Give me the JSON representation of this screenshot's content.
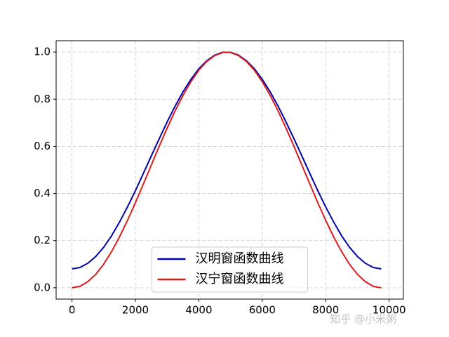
{
  "chart_data": {
    "type": "line",
    "x": [
      0,
      250,
      500,
      750,
      1000,
      1250,
      1500,
      1750,
      2000,
      2250,
      2500,
      2750,
      3000,
      3250,
      3500,
      3750,
      4000,
      4250,
      4500,
      4750,
      5000,
      5250,
      5500,
      5750,
      6000,
      6250,
      6500,
      6750,
      7000,
      7250,
      7500,
      7750,
      8000,
      8250,
      8500,
      8750,
      9000,
      9250,
      9500,
      9750
    ],
    "series": [
      {
        "name": "汉明窗函数曲线",
        "color": "#0000aa",
        "values": [
          0.08,
          0.086,
          0.104,
          0.133,
          0.172,
          0.221,
          0.279,
          0.343,
          0.412,
          0.485,
          0.559,
          0.632,
          0.703,
          0.77,
          0.831,
          0.884,
          0.929,
          0.963,
          0.987,
          0.999,
          0.999,
          0.987,
          0.963,
          0.929,
          0.884,
          0.831,
          0.77,
          0.703,
          0.632,
          0.559,
          0.485,
          0.412,
          0.343,
          0.279,
          0.221,
          0.172,
          0.133,
          0.104,
          0.086,
          0.08
        ]
      },
      {
        "name": "汉宁窗函数曲线",
        "color": "#dd1c1c",
        "values": [
          0,
          0.006,
          0.026,
          0.057,
          0.1,
          0.154,
          0.216,
          0.286,
          0.361,
          0.44,
          0.52,
          0.6,
          0.677,
          0.75,
          0.816,
          0.874,
          0.923,
          0.96,
          0.985,
          0.998,
          0.998,
          0.985,
          0.96,
          0.923,
          0.874,
          0.816,
          0.75,
          0.677,
          0.6,
          0.52,
          0.44,
          0.361,
          0.286,
          0.216,
          0.154,
          0.1,
          0.057,
          0.026,
          0.006,
          0
        ]
      }
    ],
    "xlim": [
      -500,
      10450
    ],
    "xticks": [
      0,
      2000,
      4000,
      6000,
      8000,
      10000
    ],
    "ylim": [
      -0.048,
      1.048
    ],
    "yticks": [
      {
        "value": 0,
        "label": "0.0"
      },
      0.2,
      0.4,
      0.6,
      0.8,
      {
        "value": 1,
        "label": "1.0"
      }
    ],
    "grid": true,
    "legend": "lower center",
    "watermark": "知乎 @小米粥"
  }
}
